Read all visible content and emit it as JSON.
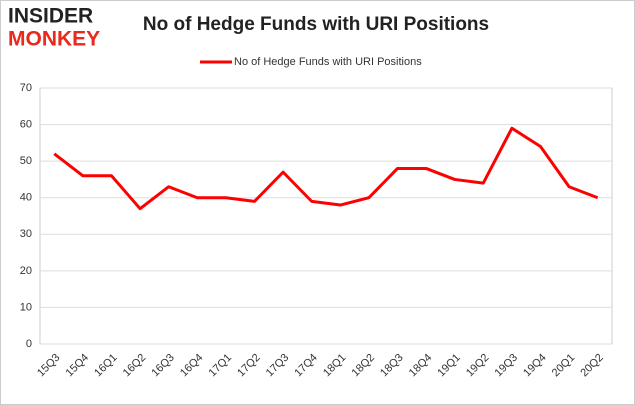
{
  "logo": {
    "line1": "INSIDER",
    "line2": "MONKEY"
  },
  "chart_data": {
    "type": "line",
    "title": "No of Hedge Funds with URI Positions",
    "categories": [
      "15Q3",
      "15Q4",
      "16Q1",
      "16Q2",
      "16Q3",
      "16Q4",
      "17Q1",
      "17Q2",
      "17Q3",
      "17Q4",
      "18Q1",
      "18Q2",
      "18Q3",
      "18Q4",
      "19Q1",
      "19Q2",
      "19Q3",
      "19Q4",
      "20Q1",
      "20Q2"
    ],
    "series": [
      {
        "name": "No of Hedge Funds with URI Positions",
        "color": "#ff0000",
        "values": [
          52,
          46,
          46,
          37,
          43,
          40,
          40,
          39,
          47,
          39,
          38,
          40,
          48,
          48,
          45,
          44,
          59,
          54,
          43,
          40
        ]
      }
    ],
    "ylim": [
      0,
      70
    ],
    "yticks": [
      0,
      10,
      20,
      30,
      40,
      50,
      60,
      70
    ],
    "grid": true,
    "legend": "top"
  }
}
